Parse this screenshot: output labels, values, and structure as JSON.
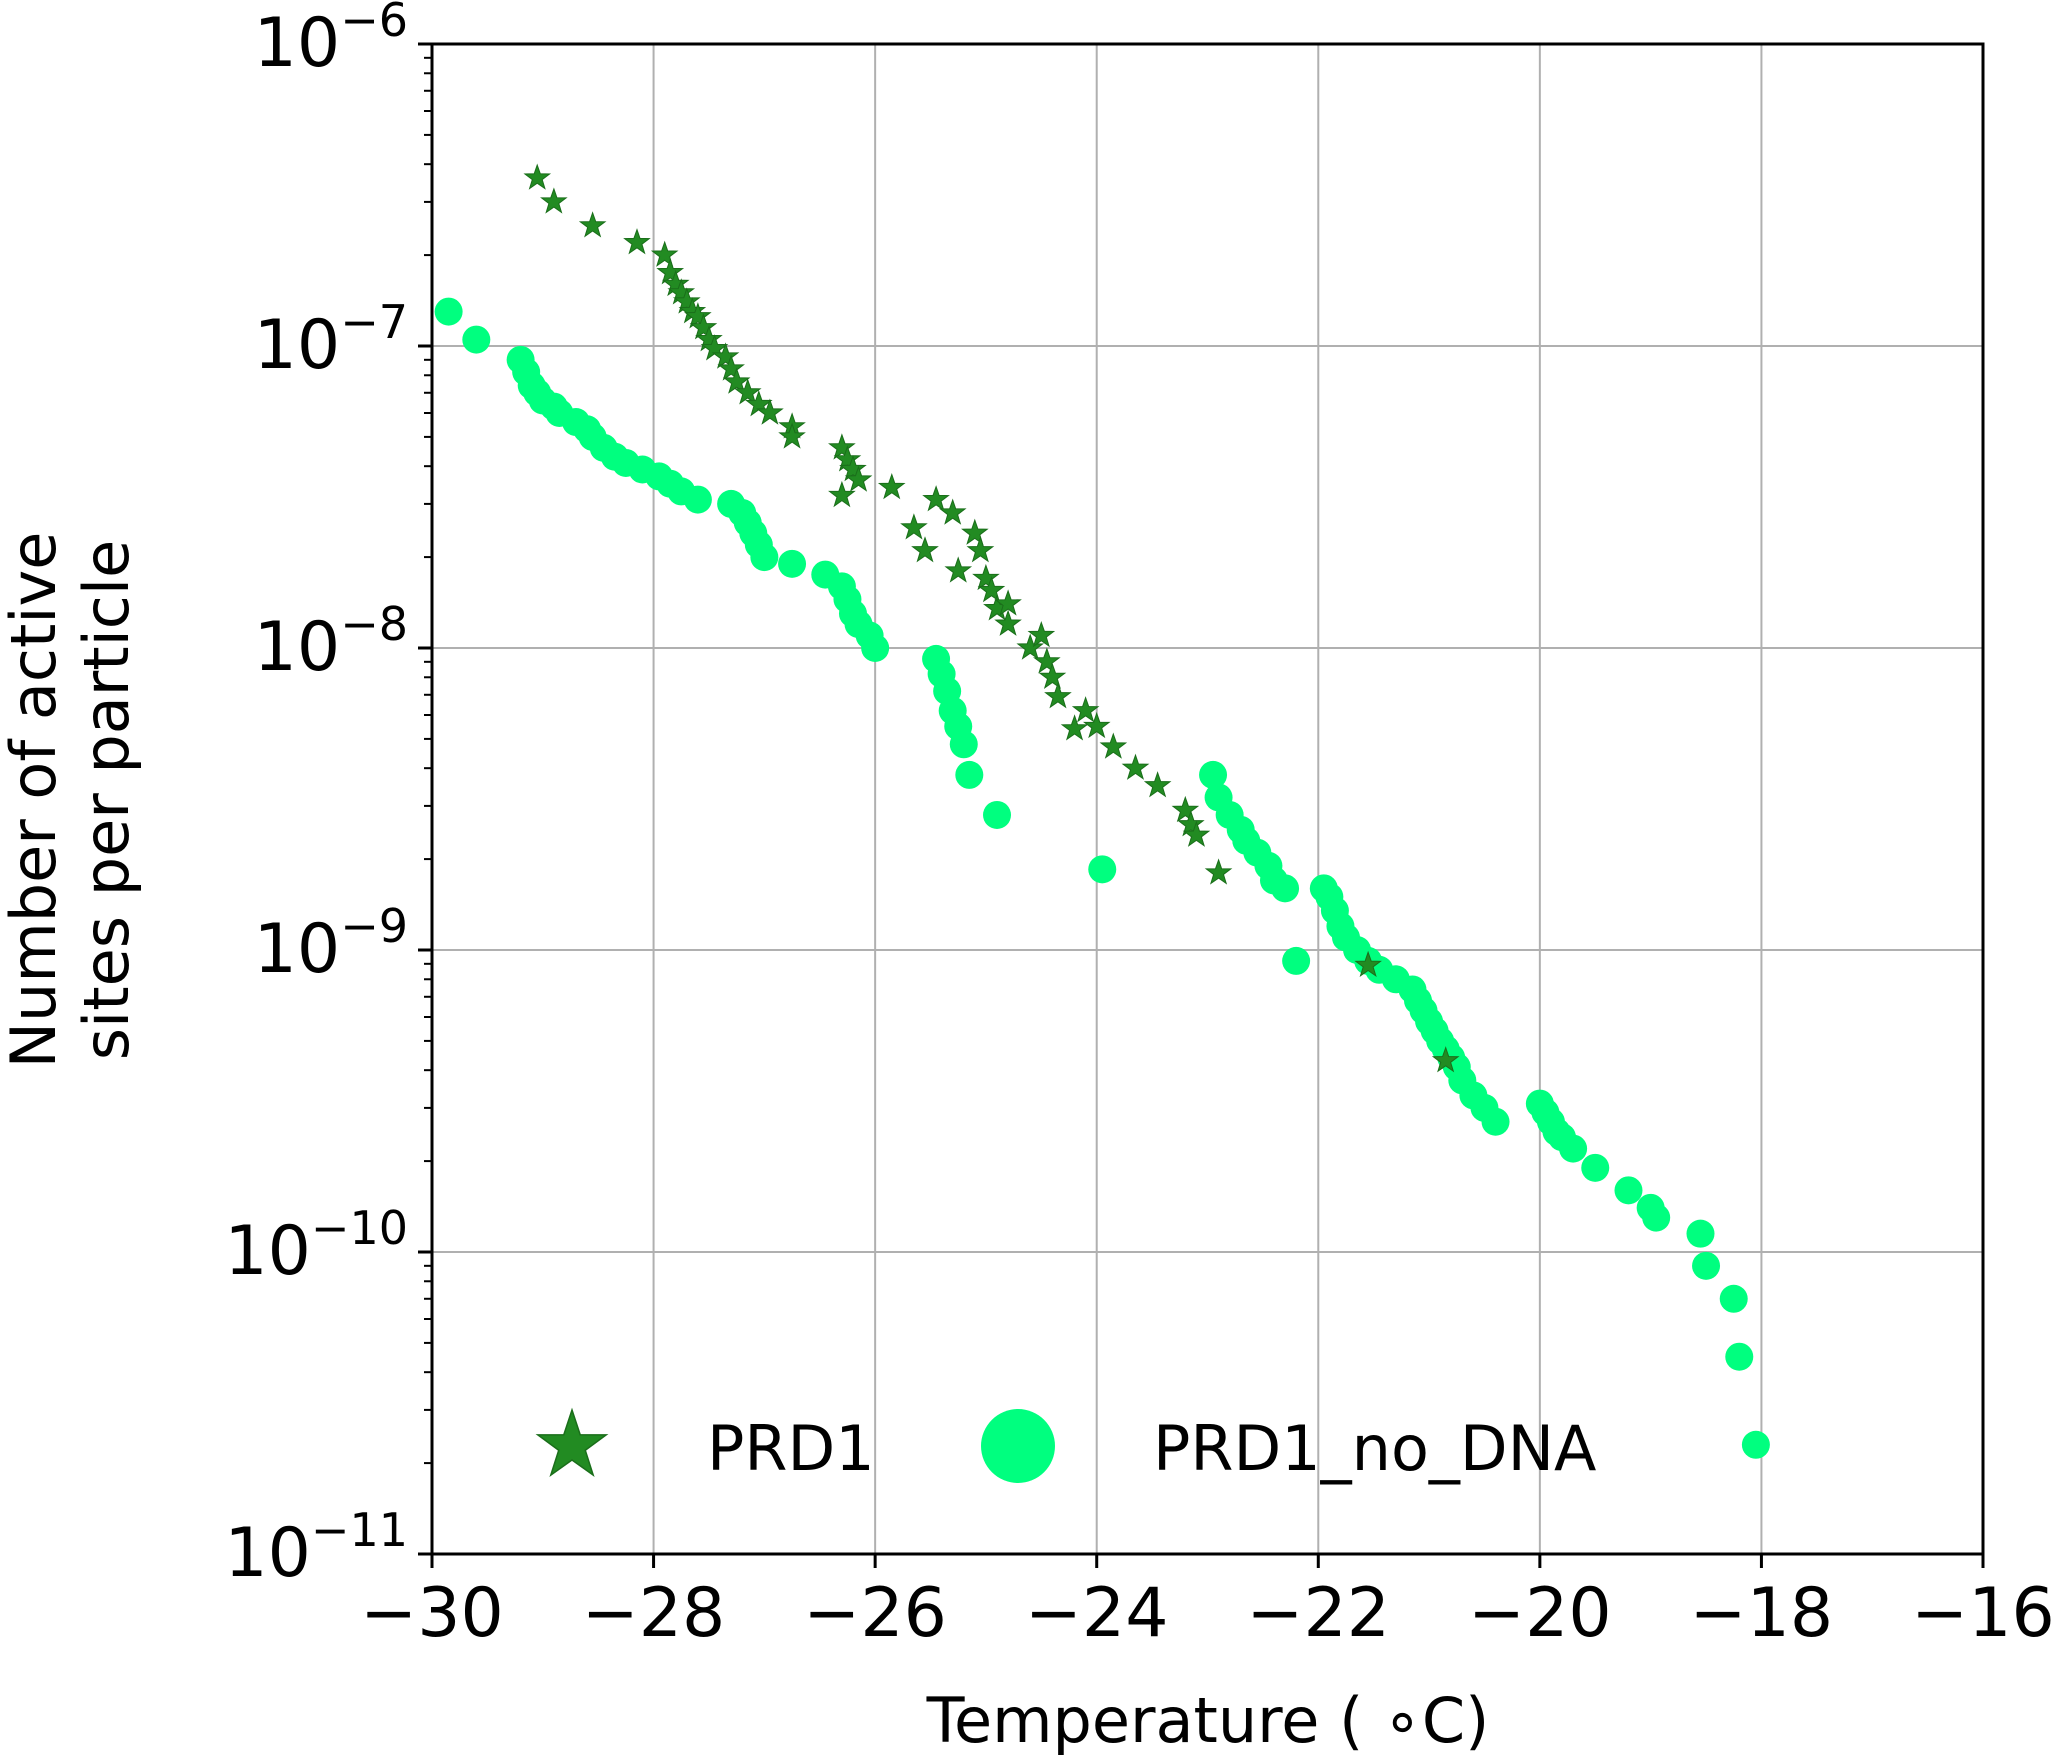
{
  "chart_data": {
    "type": "scatter",
    "title": "",
    "xlabel": "Temperature ( ∘C)",
    "ylabel_lines": [
      "Number of active",
      "sites per particle"
    ],
    "xlim": [
      -30,
      -16
    ],
    "ylim": [
      1e-11,
      1e-06
    ],
    "y_scale": "log",
    "grid": true,
    "x_ticks": [
      -30,
      -28,
      -26,
      -24,
      -22,
      -20,
      -18,
      -16
    ],
    "x_tick_labels": [
      "−30",
      "−28",
      "−26",
      "−24",
      "−22",
      "−20",
      "−18",
      "−16"
    ],
    "y_ticks": [
      1e-11,
      1e-10,
      1e-09,
      1e-08,
      1e-07,
      1e-06
    ],
    "y_tick_labels": [
      {
        "base": "10",
        "exp": "−11"
      },
      {
        "base": "10",
        "exp": "−10"
      },
      {
        "base": "10",
        "exp": "−9"
      },
      {
        "base": "10",
        "exp": "−8"
      },
      {
        "base": "10",
        "exp": "−7"
      },
      {
        "base": "10",
        "exp": "−6"
      }
    ],
    "legend_position": "bottom-center",
    "series": [
      {
        "name": "PRD1",
        "marker": "star",
        "color": "#228B22",
        "x": [
          -29.05,
          -28.9,
          -28.55,
          -28.15,
          -27.9,
          -27.85,
          -27.8,
          -27.75,
          -27.7,
          -27.65,
          -27.6,
          -27.55,
          -27.5,
          -27.45,
          -27.35,
          -27.3,
          -27.25,
          -27.15,
          -27.05,
          -26.95,
          -26.75,
          -26.75,
          -26.3,
          -26.25,
          -26.2,
          -26.15,
          -26.3,
          -25.85,
          -25.65,
          -25.55,
          -25.45,
          -25.3,
          -25.1,
          -25.05,
          -25.25,
          -25.0,
          -24.95,
          -24.9,
          -24.8,
          -24.8,
          -24.6,
          -24.5,
          -24.45,
          -24.4,
          -24.35,
          -24.2,
          -24.1,
          -24.0,
          -23.85,
          -23.65,
          -23.45,
          -23.2,
          -23.15,
          -23.1,
          -22.9,
          -21.55,
          -20.85
        ],
        "y": [
          3.6e-07,
          3e-07,
          2.5e-07,
          2.2e-07,
          2e-07,
          1.75e-07,
          1.6e-07,
          1.5e-07,
          1.4e-07,
          1.3e-07,
          1.25e-07,
          1.15e-07,
          1.05e-07,
          9.8e-08,
          9.2e-08,
          8.4e-08,
          7.6e-08,
          7e-08,
          6.4e-08,
          6e-08,
          5.4e-08,
          5e-08,
          4.6e-08,
          4.2e-08,
          3.9e-08,
          3.6e-08,
          3.2e-08,
          3.4e-08,
          2.5e-08,
          2.1e-08,
          3.1e-08,
          2.8e-08,
          2.4e-08,
          2.1e-08,
          1.8e-08,
          1.7e-08,
          1.55e-08,
          1.35e-08,
          1.2e-08,
          1.4e-08,
          1e-08,
          1.1e-08,
          9e-09,
          8e-09,
          6.9e-09,
          5.4e-09,
          6.2e-09,
          5.5e-09,
          4.7e-09,
          4e-09,
          3.5e-09,
          2.9e-09,
          2.6e-09,
          2.4e-09,
          1.8e-09,
          8.9e-10,
          4.3e-10
        ]
      },
      {
        "name": "PRD1_no_DNA",
        "marker": "circle",
        "color": "#00FF7F",
        "x": [
          -29.85,
          -29.6,
          -29.2,
          -29.15,
          -29.1,
          -29.05,
          -29.0,
          -28.9,
          -28.85,
          -28.7,
          -28.6,
          -28.55,
          -28.45,
          -28.35,
          -28.25,
          -28.1,
          -27.95,
          -27.85,
          -27.75,
          -27.6,
          -27.3,
          -27.2,
          -27.15,
          -27.1,
          -27.05,
          -27.0,
          -26.75,
          -26.45,
          -26.3,
          -26.25,
          -26.2,
          -26.15,
          -26.05,
          -26.0,
          -25.45,
          -25.4,
          -25.35,
          -25.3,
          -25.25,
          -25.2,
          -25.15,
          -24.9,
          -23.95,
          -22.95,
          -22.9,
          -22.8,
          -22.7,
          -22.65,
          -22.55,
          -22.45,
          -22.4,
          -22.3,
          -22.2,
          -21.95,
          -21.9,
          -21.85,
          -21.8,
          -21.75,
          -21.65,
          -21.55,
          -21.45,
          -21.3,
          -21.15,
          -21.1,
          -21.05,
          -21.0,
          -20.95,
          -20.9,
          -20.85,
          -20.8,
          -20.75,
          -20.7,
          -20.6,
          -20.5,
          -20.4,
          -20.0,
          -19.95,
          -19.9,
          -19.85,
          -19.8,
          -19.7,
          -19.5,
          -19.2,
          -19.0,
          -18.95,
          -18.55,
          -18.5,
          -18.25,
          -18.2,
          -18.05
        ],
        "y": [
          1.3e-07,
          1.05e-07,
          9e-08,
          8.2e-08,
          7.4e-08,
          7e-08,
          6.6e-08,
          6.3e-08,
          6e-08,
          5.6e-08,
          5.3e-08,
          5e-08,
          4.6e-08,
          4.3e-08,
          4.1e-08,
          3.9e-08,
          3.7e-08,
          3.5e-08,
          3.3e-08,
          3.1e-08,
          3e-08,
          2.8e-08,
          2.6e-08,
          2.4e-08,
          2.2e-08,
          2e-08,
          1.9e-08,
          1.75e-08,
          1.6e-08,
          1.45e-08,
          1.3e-08,
          1.2e-08,
          1.1e-08,
          1e-08,
          9.2e-09,
          8.2e-09,
          7.2e-09,
          6.2e-09,
          5.5e-09,
          4.8e-09,
          3.8e-09,
          2.8e-09,
          1.85e-09,
          3.8e-09,
          3.2e-09,
          2.8e-09,
          2.5e-09,
          2.3e-09,
          2.1e-09,
          1.9e-09,
          1.7e-09,
          1.6e-09,
          9.2e-10,
          1.6e-09,
          1.5e-09,
          1.35e-09,
          1.2e-09,
          1.1e-09,
          1e-09,
          9.2e-10,
          8.6e-10,
          8e-10,
          7.4e-10,
          6.8e-10,
          6.3e-10,
          5.8e-10,
          5.4e-10,
          5e-10,
          4.7e-10,
          4.4e-10,
          4.1e-10,
          3.7e-10,
          3.3e-10,
          3e-10,
          2.7e-10,
          3.1e-10,
          2.9e-10,
          2.7e-10,
          2.5e-10,
          2.4e-10,
          2.2e-10,
          1.9e-10,
          1.6e-10,
          1.4e-10,
          1.3e-10,
          1.15e-10,
          9e-11,
          7e-11,
          4.5e-11,
          2.3e-11
        ]
      }
    ]
  }
}
